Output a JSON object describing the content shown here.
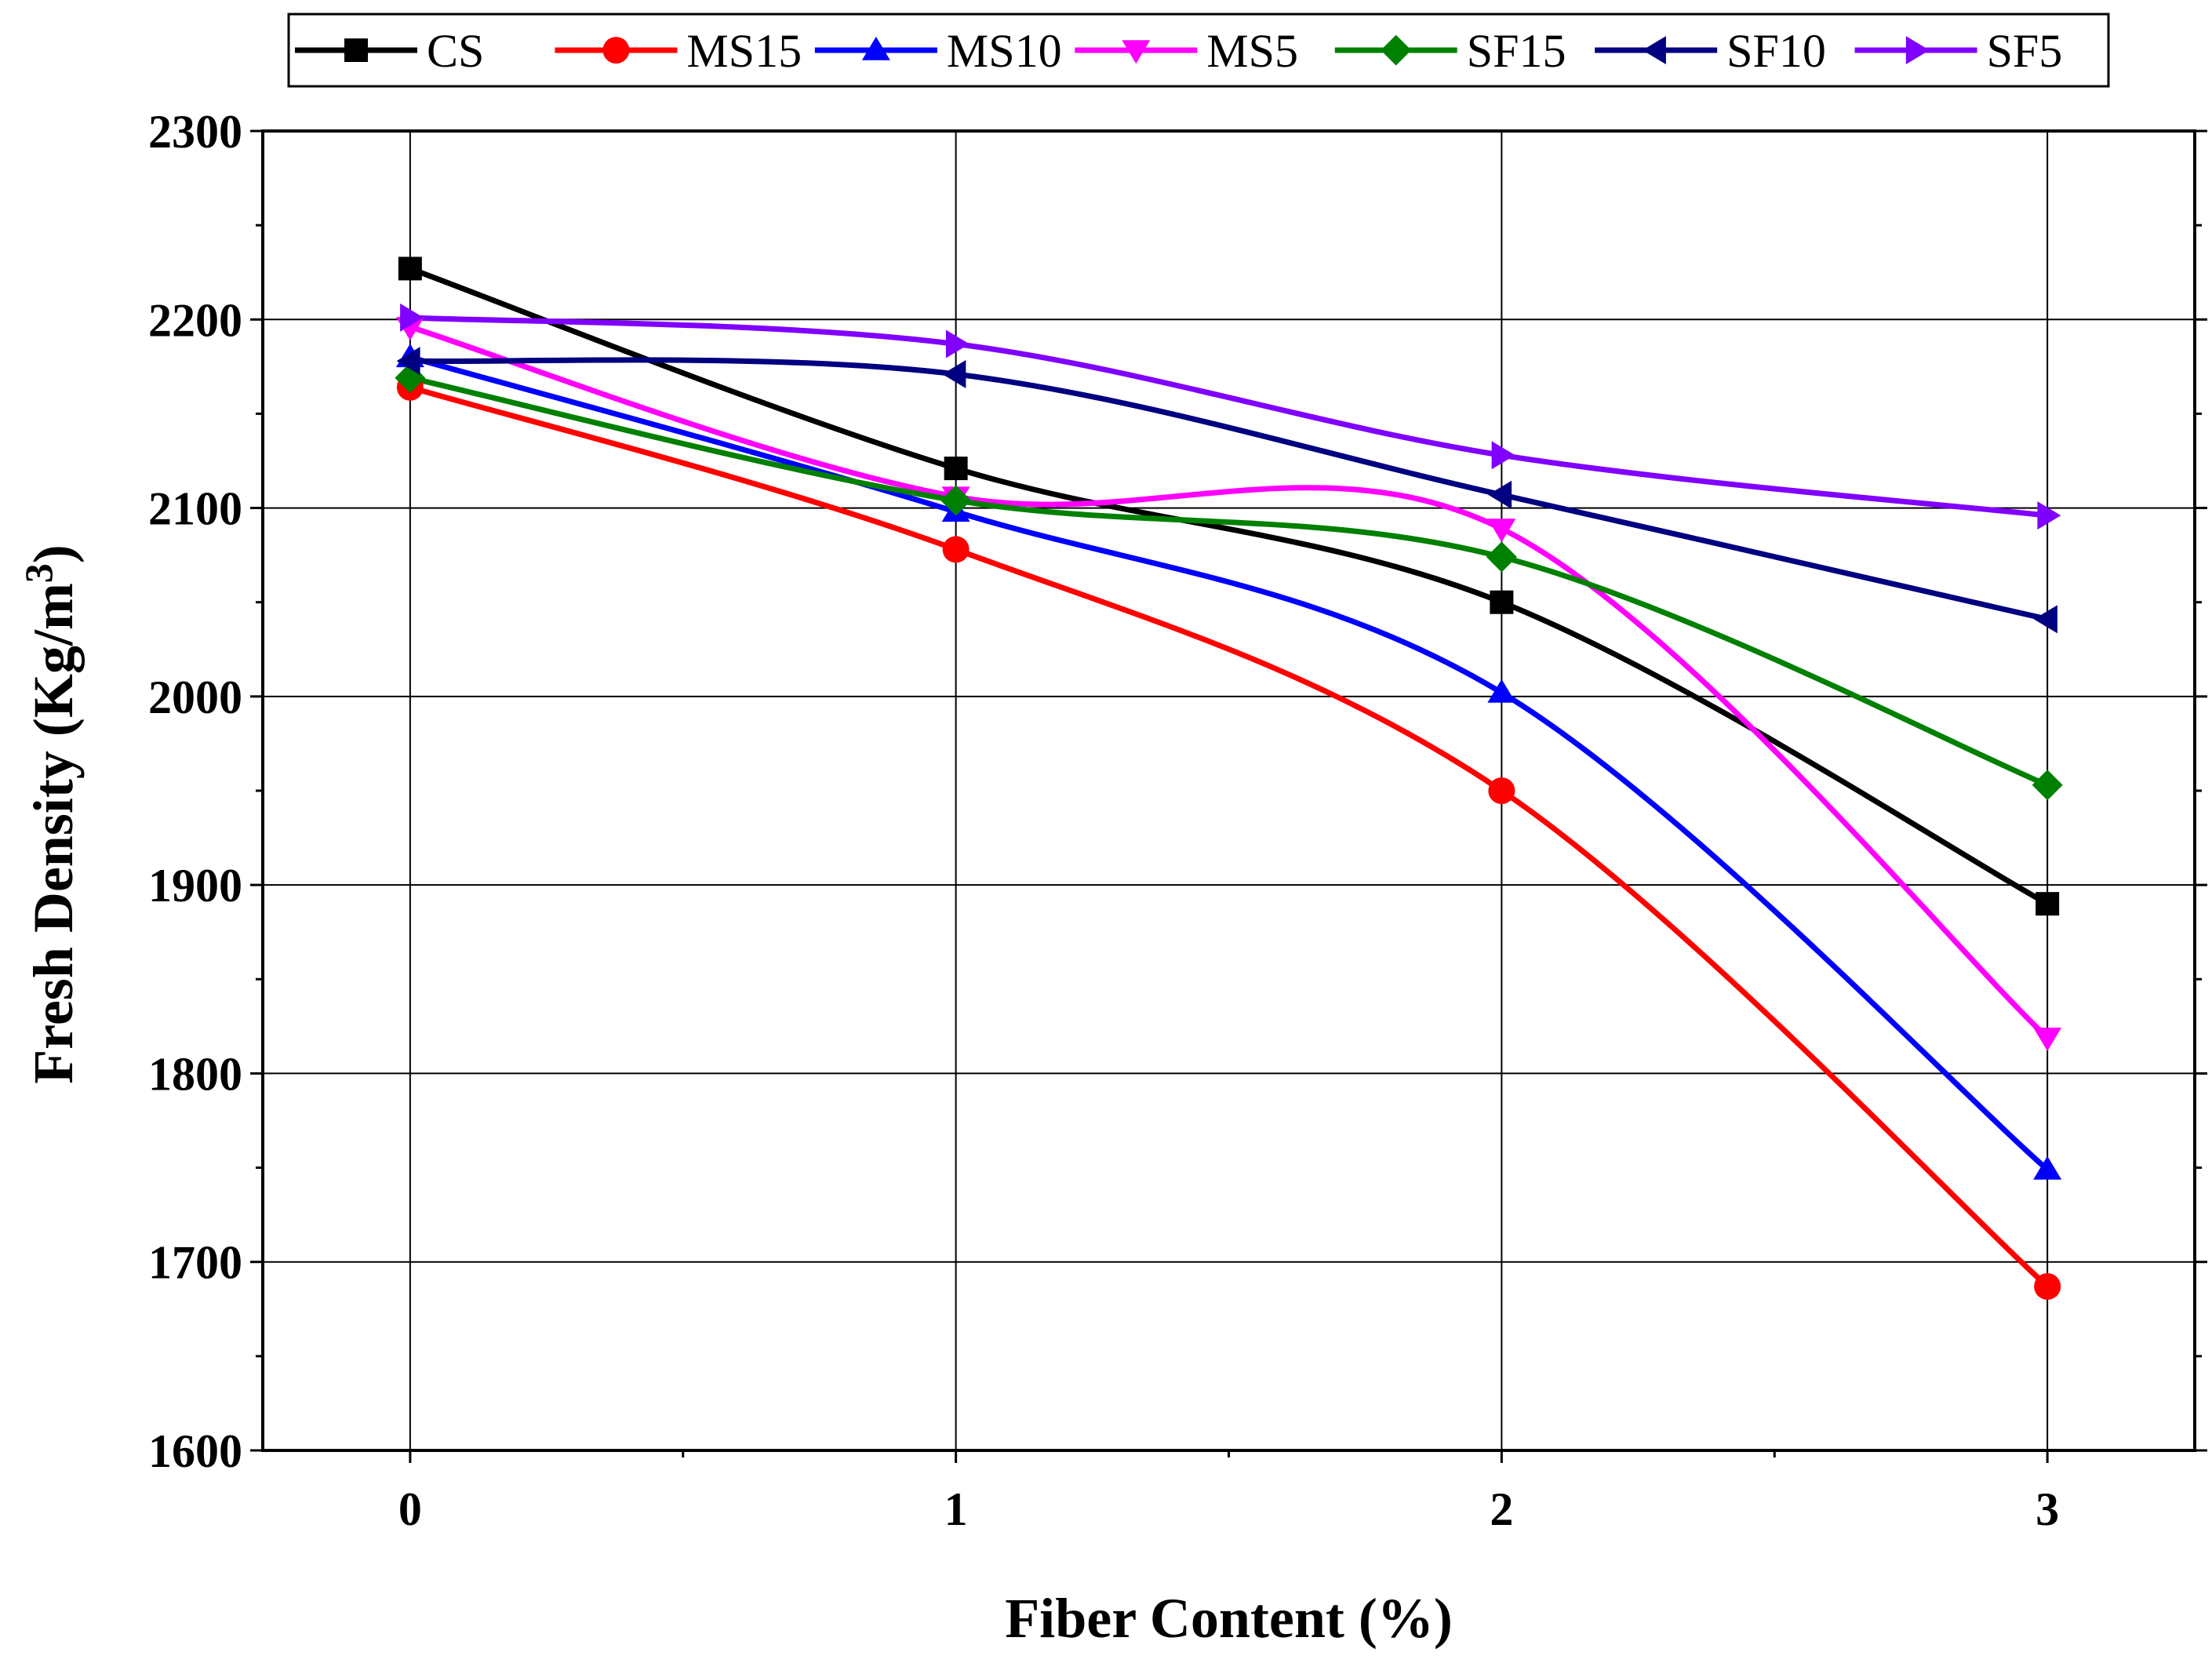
{
  "chart_data": {
    "type": "line",
    "title": "",
    "xlabel": "Fiber Content (%)",
    "ylabel_main": "Fresh Density (Kg/m",
    "ylabel_sup": "3",
    "ylabel_close": ")",
    "x": [
      0,
      1,
      2,
      3
    ],
    "x_tick_labels": [
      "0",
      "1",
      "2",
      "3"
    ],
    "y_tick_labels": [
      "1600",
      "1700",
      "1800",
      "1900",
      "2000",
      "2100",
      "2200",
      "2300"
    ],
    "xlim": [
      -0.27,
      3.27
    ],
    "ylim": [
      1600,
      2300
    ],
    "grid": true,
    "legend_position": "top",
    "series": [
      {
        "name": "CS",
        "values": [
          2227,
          2121,
          2050,
          1890
        ],
        "color": "#000000",
        "marker": "square"
      },
      {
        "name": "MS15",
        "values": [
          2164,
          2078,
          1950,
          1687
        ],
        "color": "#ff0000",
        "marker": "circle"
      },
      {
        "name": "MS10",
        "values": [
          2180,
          2098,
          2002,
          1749
        ],
        "color": "#0000ff",
        "marker": "triangle-up"
      },
      {
        "name": "MS5",
        "values": [
          2196,
          2106,
          2089,
          1819
        ],
        "color": "#ff00ff",
        "marker": "triangle-down"
      },
      {
        "name": "SF15",
        "values": [
          2169,
          2104,
          2074,
          1953
        ],
        "color": "#008000",
        "marker": "diamond"
      },
      {
        "name": "SF10",
        "values": [
          2178,
          2171,
          2107,
          2041
        ],
        "color": "#000080",
        "marker": "triangle-left"
      },
      {
        "name": "SF5",
        "values": [
          2201,
          2187,
          2128,
          2096
        ],
        "color": "#8000ff",
        "marker": "triangle-right"
      }
    ]
  }
}
